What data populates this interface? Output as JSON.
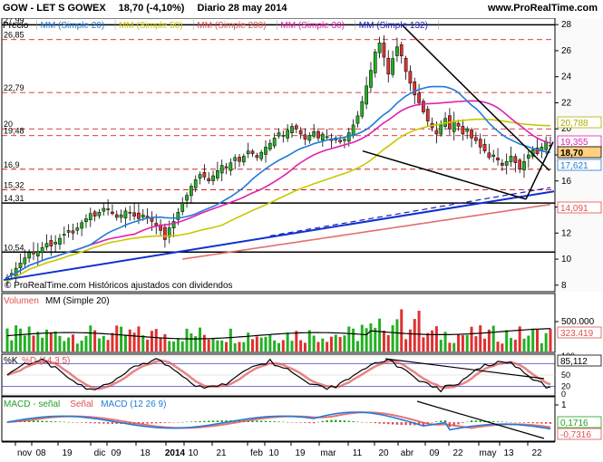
{
  "header": {
    "ticker": "GOW - LET S GOWEX",
    "quote": "18,70 (-4,10%)",
    "period_date": "Diario  28 may 2014",
    "site": "www.ProRealTime.com"
  },
  "price_panel": {
    "legend": [
      {
        "label": "Precio",
        "color": "#000000"
      },
      {
        "label": "MM (Simple 20)",
        "color": "#1f7bd8"
      },
      {
        "label": "MM (Simple 50)",
        "color": "#c8c800"
      },
      {
        "label": "MM (Simple 200)",
        "color": "#e05050"
      },
      {
        "label": "MM (Simple 30)",
        "color": "#e020b0"
      },
      {
        "label": "MM (Simple 132)",
        "color": "#2020c0"
      }
    ],
    "footnote": "© ProRealTime.com  Históricos ajustados con dividendos",
    "hlines": [
      "27,99",
      "26,85",
      "22,79",
      "20",
      "19,48",
      "16,9",
      "15,32",
      "14,31",
      "10,54"
    ],
    "right_ticks": [
      "28",
      "26",
      "24",
      "22",
      "20",
      "18",
      "16",
      "14",
      "12",
      "10",
      "8"
    ],
    "right_tags": [
      {
        "text": "20,788",
        "color": "#b0b000"
      },
      {
        "text": "19,355",
        "color": "#e020b0"
      },
      {
        "text": "18,70",
        "color": "#000000"
      },
      {
        "text": "17,621",
        "color": "#1f7bd8"
      },
      {
        "text": "14,091",
        "color": "#e05050"
      }
    ]
  },
  "volume_panel": {
    "legend": [
      {
        "label": "Volumen",
        "color": "#e05050"
      },
      {
        "label": "MM (Simple 20)",
        "color": "#000000"
      }
    ],
    "right_ticks": [
      "500.000"
    ],
    "right_tags": [
      {
        "text": "323.419",
        "color": "#e05050"
      }
    ]
  },
  "stoch_panel": {
    "legend": [
      {
        "label": "%K",
        "color": "#000000"
      },
      {
        "label": "%D (14 3 5)",
        "color": "#e05050"
      }
    ],
    "right_ticks": [
      "100",
      "80",
      "50",
      "20",
      "0"
    ],
    "right_tags": [
      {
        "text": "85,112",
        "color": "#000000"
      }
    ]
  },
  "macd_panel": {
    "legend": [
      {
        "label": "MACD - señal",
        "color": "#20a020"
      },
      {
        "label": "Señal",
        "color": "#e05050"
      },
      {
        "label": "MACD (12 26 9)",
        "color": "#1f7bd8"
      }
    ],
    "right_ticks": [
      "1"
    ],
    "right_tags": [
      {
        "text": "0,1716",
        "color": "#20a020"
      },
      {
        "text": "-0,7316",
        "color": "#e05050"
      }
    ]
  },
  "x_axis": {
    "labels": [
      "nov",
      "08",
      "19",
      "dic",
      "09",
      "18",
      "2014",
      "10",
      "21",
      "feb",
      "10",
      "19",
      "mar",
      "11",
      "20",
      "abr",
      "09",
      "22",
      "may",
      "13",
      "22"
    ]
  },
  "chart_data": {
    "type": "candlestick",
    "title": "GOW - LET S GOWEX",
    "ylim": [
      7.5,
      28.5
    ],
    "ohlc_close_approx": [
      8.6,
      8.9,
      9.3,
      9.7,
      10.1,
      10.5,
      10.4,
      10.6,
      10.9,
      11.2,
      11.0,
      11.3,
      11.6,
      11.9,
      12.2,
      12.0,
      12.4,
      12.8,
      13.1,
      13.5,
      13.3,
      13.6,
      13.9,
      13.8,
      13.5,
      13.2,
      13.4,
      13.7,
      13.6,
      13.3,
      13.1,
      13.4,
      13.2,
      12.9,
      12.6,
      12.2,
      11.5,
      12.4,
      12.9,
      13.6,
      14.3,
      14.9,
      15.6,
      16.1,
      16.5,
      16.3,
      16.0,
      16.4,
      16.8,
      17.2,
      17.0,
      17.4,
      17.8,
      17.5,
      17.9,
      18.3,
      18.1,
      17.8,
      18.2,
      18.6,
      18.9,
      19.3,
      19.7,
      19.5,
      19.9,
      20.2,
      20.0,
      19.6,
      19.2,
      19.5,
      19.8,
      19.3,
      19.6,
      19.4,
      19.1,
      19.3,
      19.0,
      19.2,
      19.7,
      20.3,
      21.0,
      22.1,
      23.3,
      24.5,
      25.9,
      26.6,
      25.5,
      24.2,
      25.4,
      26.3,
      25.6,
      24.4,
      23.5,
      22.6,
      22.0,
      21.3,
      20.6,
      20.1,
      19.6,
      20.3,
      20.8,
      20.0,
      20.6,
      20.2,
      19.6,
      20.0,
      19.3,
      19.1,
      18.6,
      18.3,
      17.8,
      18.0,
      17.6,
      17.2,
      17.5,
      17.9,
      17.4,
      16.9,
      17.5,
      18.0,
      18.4,
      18.1,
      18.6,
      19.0,
      18.7
    ]
  }
}
